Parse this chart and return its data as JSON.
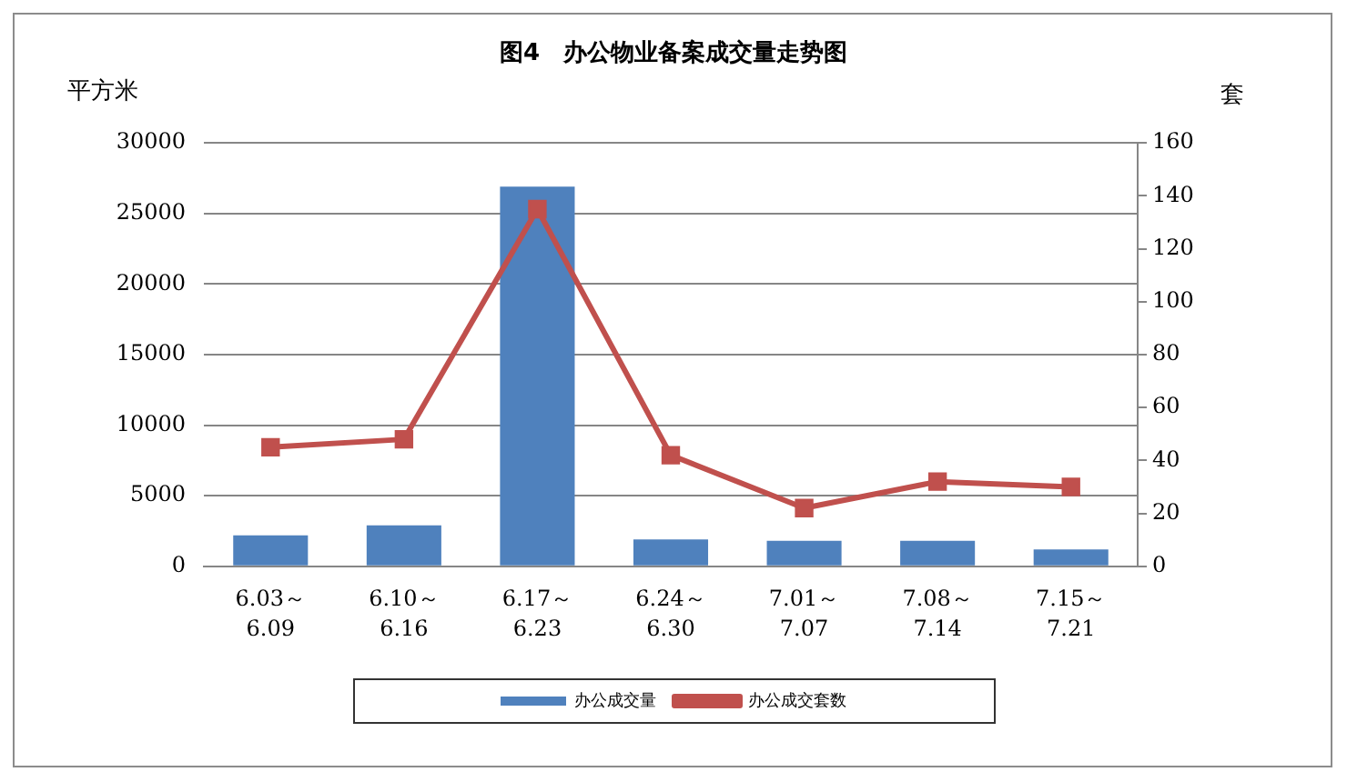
{
  "chart_data": {
    "type": "bar",
    "title": "图4　办公物业备案成交量走势图",
    "ylabel": "平方米",
    "y2label": "套",
    "categories": [
      "6.03～\n6.09",
      "6.10～\n6.16",
      "6.17～\n6.23",
      "6.24～\n6.30",
      "7.01～\n7.07",
      "7.08～\n7.14",
      "7.15～\n7.21"
    ],
    "series": [
      {
        "name": "办公成交量",
        "color": "#4f81bd",
        "values": [
          2200,
          2900,
          26900,
          1900,
          1800,
          1800,
          1200
        ]
      },
      {
        "name": "办公成交套数",
        "type": "line",
        "axis": "y2",
        "color": "#c0504d",
        "values": [
          45,
          48,
          135,
          42,
          22,
          32,
          30
        ]
      }
    ],
    "ylim": [
      0,
      30000
    ],
    "yticks": [
      0,
      5000,
      10000,
      15000,
      20000,
      25000,
      30000
    ],
    "y2lim": [
      0,
      160
    ],
    "y2ticks": [
      0,
      20,
      40,
      60,
      80,
      100,
      120,
      140,
      160
    ],
    "grid": "y",
    "legend": "bottom",
    "marker": "square"
  }
}
